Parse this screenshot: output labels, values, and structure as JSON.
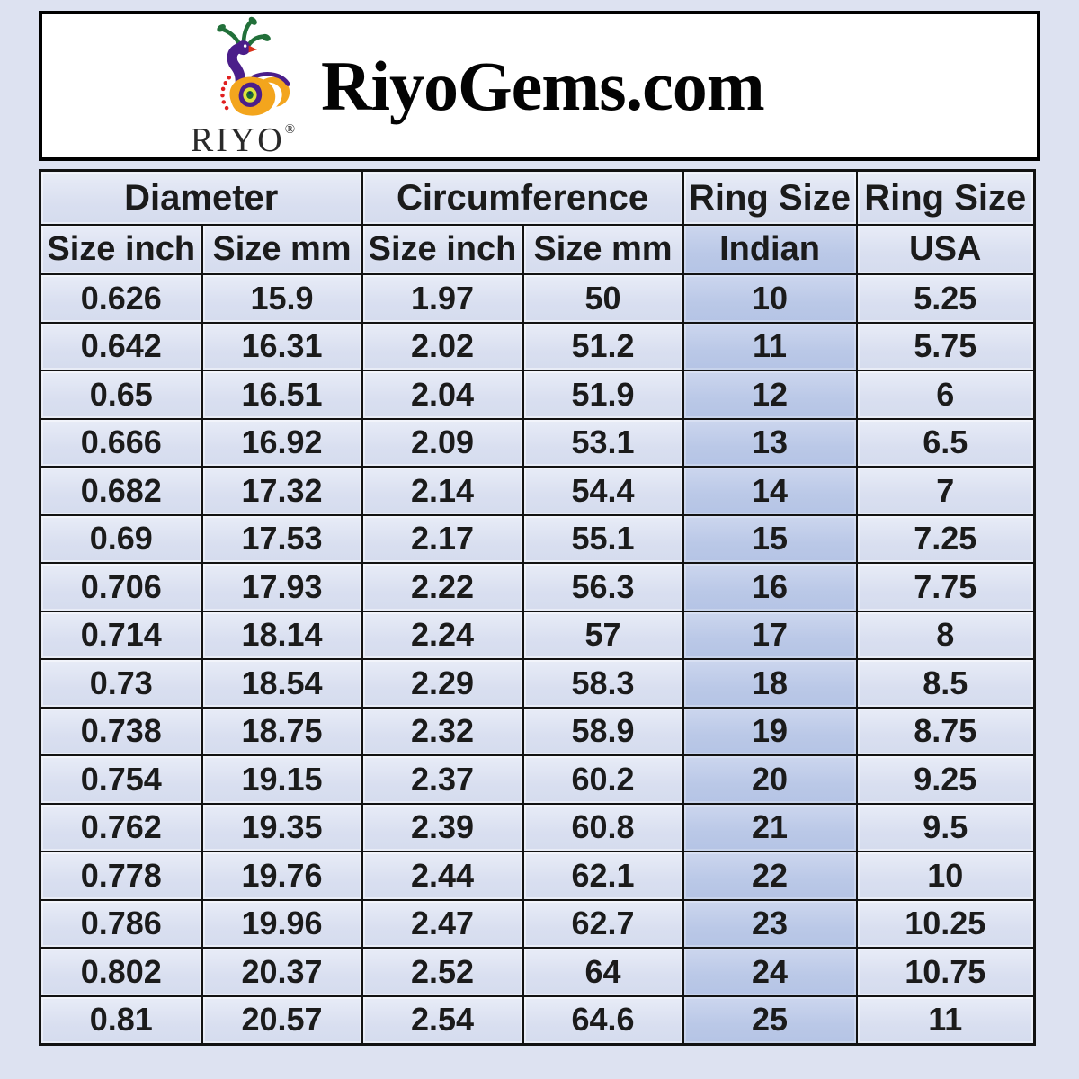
{
  "page": {
    "background_color": "#dde2f1"
  },
  "header": {
    "title": "RiyoGems.com",
    "brand": "RIYO",
    "registered_mark": "®",
    "logo_icon": "peacock-logo",
    "box_background": "#ffffff",
    "box_border_color": "#000000",
    "logo_colors": {
      "crest_green": "#22703a",
      "neck_purple": "#4b1e8a",
      "beak_red": "#d8321a",
      "body_orange": "#f3a51d",
      "eye_yellow": "#dfe23c",
      "eye_green": "#1c6b2f",
      "dot_red": "#e02020"
    }
  },
  "chart_data": {
    "type": "table",
    "title": "Ring size conversion chart",
    "column_groups": [
      {
        "label": "Diameter",
        "span": 2
      },
      {
        "label": "Circumference",
        "span": 2
      },
      {
        "label": "Ring Size",
        "span": 1
      },
      {
        "label": "Ring Size",
        "span": 1
      }
    ],
    "columns": [
      "Size inch",
      "Size mm",
      "Size inch",
      "Size mm",
      "Indian",
      "USA"
    ],
    "highlighted_column": "Indian",
    "highlighted_column_index": 4,
    "rows": [
      [
        "0.626",
        "15.9",
        "1.97",
        "50",
        "10",
        "5.25"
      ],
      [
        "0.642",
        "16.31",
        "2.02",
        "51.2",
        "11",
        "5.75"
      ],
      [
        "0.65",
        "16.51",
        "2.04",
        "51.9",
        "12",
        "6"
      ],
      [
        "0.666",
        "16.92",
        "2.09",
        "53.1",
        "13",
        "6.5"
      ],
      [
        "0.682",
        "17.32",
        "2.14",
        "54.4",
        "14",
        "7"
      ],
      [
        "0.69",
        "17.53",
        "2.17",
        "55.1",
        "15",
        "7.25"
      ],
      [
        "0.706",
        "17.93",
        "2.22",
        "56.3",
        "16",
        "7.75"
      ],
      [
        "0.714",
        "18.14",
        "2.24",
        "57",
        "17",
        "8"
      ],
      [
        "0.73",
        "18.54",
        "2.29",
        "58.3",
        "18",
        "8.5"
      ],
      [
        "0.738",
        "18.75",
        "2.32",
        "58.9",
        "19",
        "8.75"
      ],
      [
        "0.754",
        "19.15",
        "2.37",
        "60.2",
        "20",
        "9.25"
      ],
      [
        "0.762",
        "19.35",
        "2.39",
        "60.8",
        "21",
        "9.5"
      ],
      [
        "0.778",
        "19.76",
        "2.44",
        "62.1",
        "22",
        "10"
      ],
      [
        "0.786",
        "19.96",
        "2.47",
        "62.7",
        "23",
        "10.25"
      ],
      [
        "0.802",
        "20.37",
        "2.52",
        "64",
        "24",
        "10.75"
      ],
      [
        "0.81",
        "20.57",
        "2.54",
        "64.6",
        "25",
        "11"
      ]
    ],
    "colors": {
      "cell_background": "#d9dff0",
      "highlight_background": "#bac8e7",
      "border": "#121212",
      "text": "#1b1b1b"
    }
  }
}
